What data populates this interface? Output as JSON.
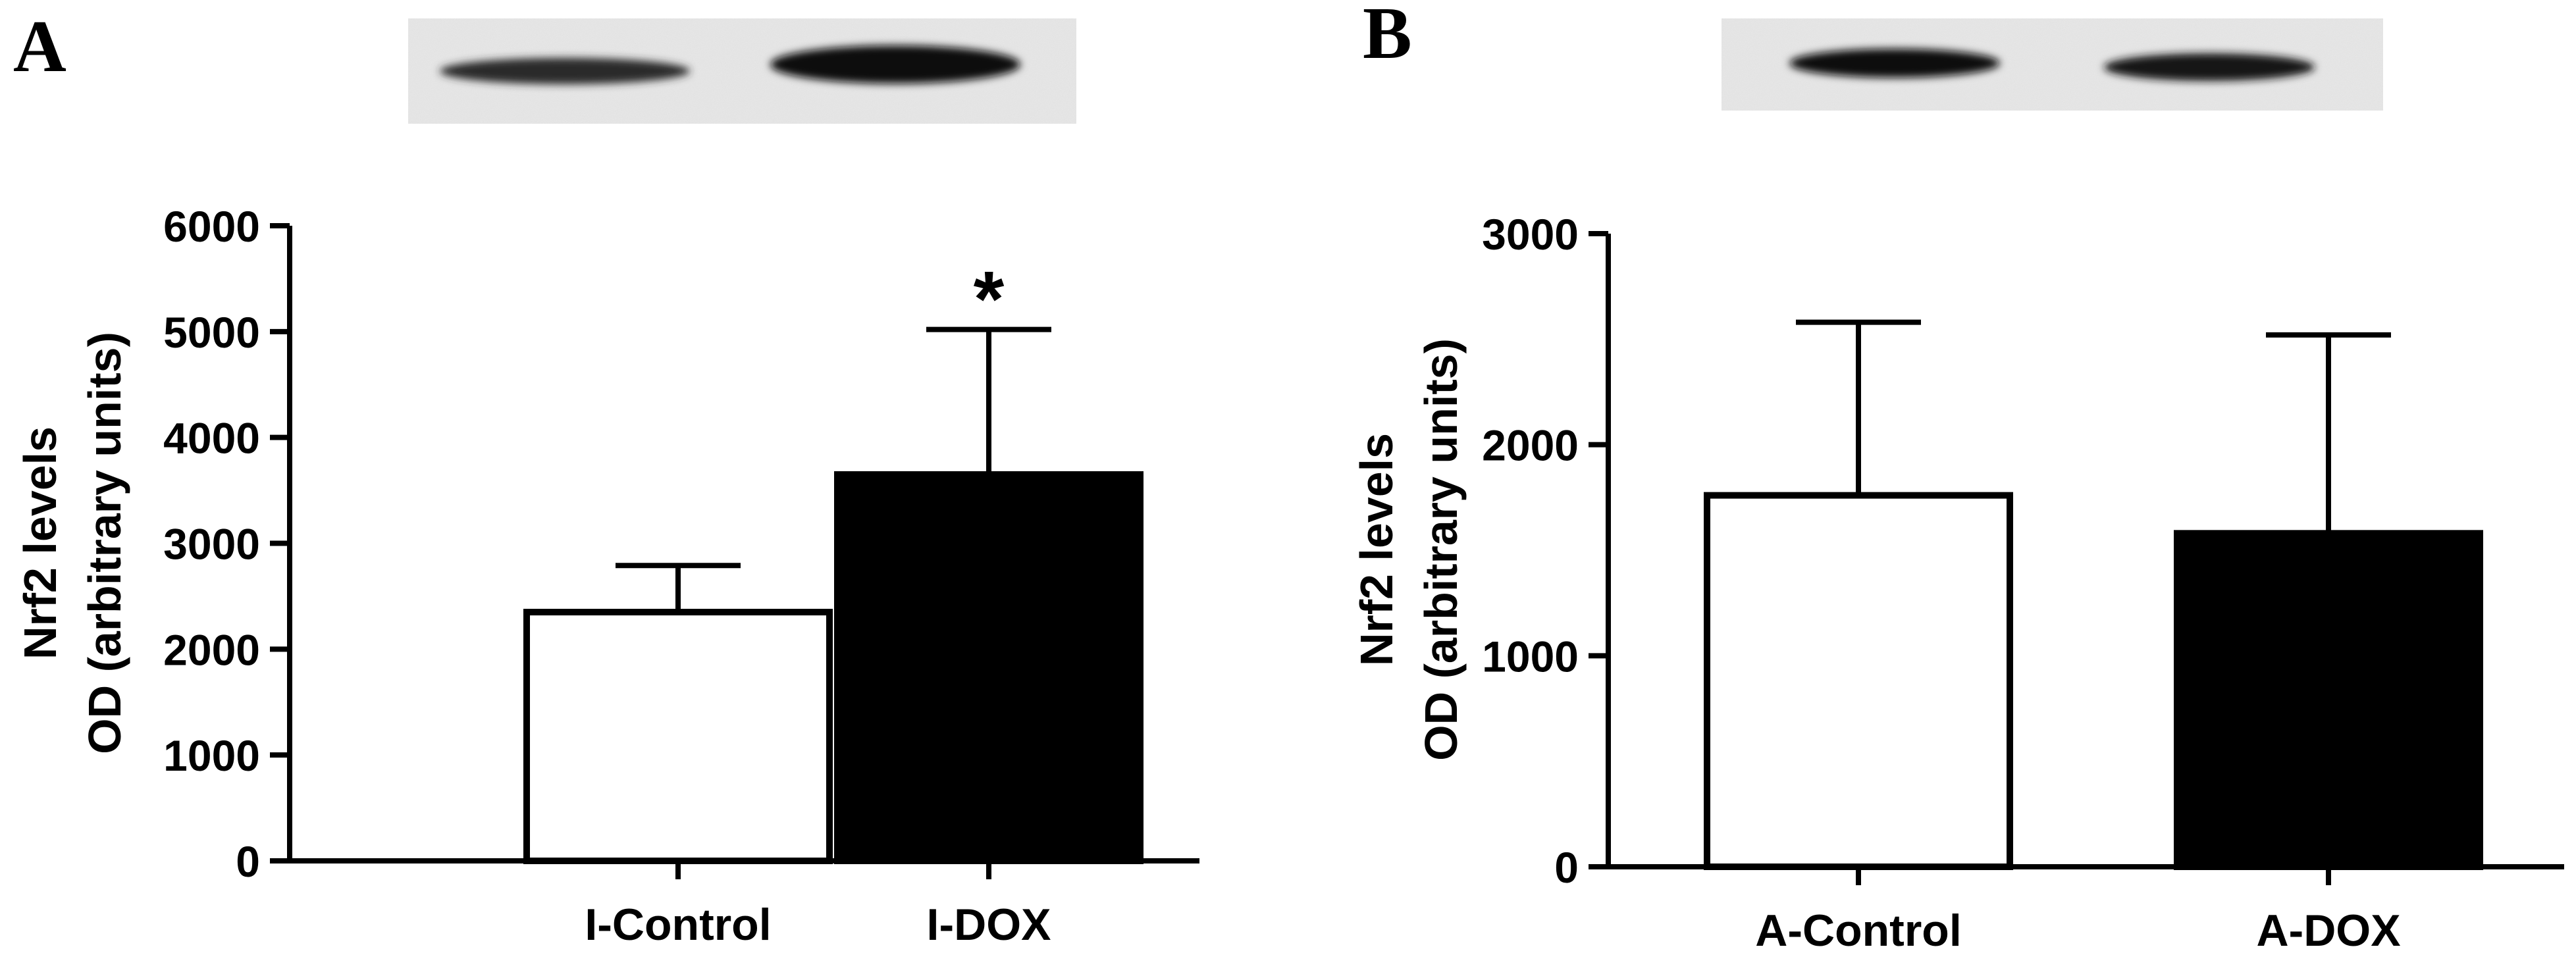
{
  "chart_data": [
    {
      "type": "bar",
      "panel_label": "A",
      "categories": [
        "I-Control",
        "I-DOX"
      ],
      "values": [
        2350,
        3650
      ],
      "error_upper": [
        2790,
        5020
      ],
      "bar_colors": [
        "#ffffff",
        "#000000"
      ],
      "ylabel_lines": [
        "Nrf2 levels",
        "OD (arbitrary units)"
      ],
      "ylim": [
        0,
        6000
      ],
      "yticks": [
        0,
        1000,
        2000,
        3000,
        4000,
        5000,
        6000
      ],
      "annotations": [
        {
          "category": "I-DOX",
          "text": "*"
        }
      ],
      "grid": false,
      "legend": "none"
    },
    {
      "type": "bar",
      "panel_label": "B",
      "categories": [
        "A-Control",
        "A-DOX"
      ],
      "values": [
        1760,
        1580
      ],
      "error_upper": [
        2580,
        2520
      ],
      "bar_colors": [
        "#ffffff",
        "#000000"
      ],
      "ylabel_lines": [
        "Nrf2 levels",
        "OD (arbitrary units)"
      ],
      "ylim": [
        0,
        3000
      ],
      "yticks": [
        0,
        1000,
        2000,
        3000
      ],
      "annotations": [],
      "grid": false,
      "legend": "none"
    }
  ]
}
